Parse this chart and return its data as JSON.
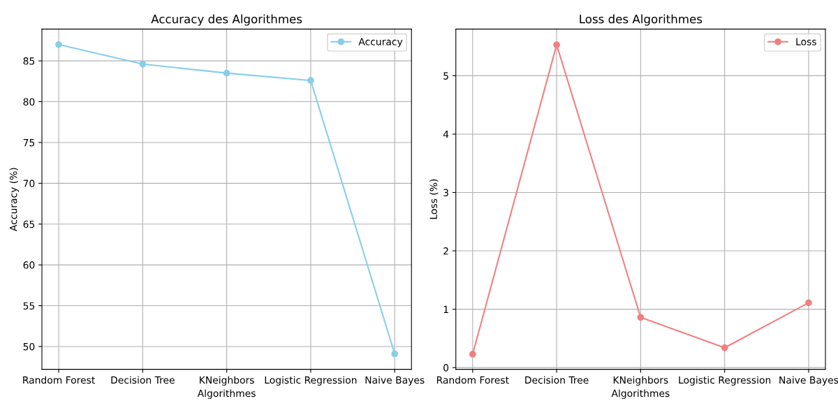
{
  "chart_data": [
    {
      "type": "line",
      "title": "Accuracy des Algorithmes",
      "xlabel": "Algorithmes",
      "ylabel": "Accuracy (%)",
      "categories": [
        "Random Forest",
        "Decision Tree",
        "KNeighbors",
        "Logistic Regression",
        "Naive Bayes"
      ],
      "series": [
        {
          "name": "Accuracy",
          "color": "#87ceeb",
          "values": [
            87.0,
            84.6,
            83.5,
            82.6,
            49.1
          ]
        }
      ],
      "ylim": [
        47.2,
        88.9
      ],
      "yticks": [
        50,
        55,
        60,
        65,
        70,
        75,
        80,
        85
      ],
      "grid": true,
      "legend": "top right",
      "marker": "circle",
      "line_style": "solid"
    },
    {
      "type": "line",
      "title": "Loss des Algorithmes",
      "xlabel": "Algorithmes",
      "ylabel": "Loss (%)",
      "categories": [
        "Random Forest",
        "Decision Tree",
        "KNeighbors",
        "Logistic Regression",
        "Naive Bayes"
      ],
      "series": [
        {
          "name": "Loss",
          "color": "#f08080",
          "values": [
            0.23,
            5.53,
            0.86,
            0.34,
            1.11
          ]
        }
      ],
      "ylim": [
        -0.03,
        5.8
      ],
      "yticks": [
        0,
        1,
        2,
        3,
        4,
        5
      ],
      "grid": true,
      "legend": "top right",
      "marker": "circle",
      "line_style": "solid"
    }
  ]
}
